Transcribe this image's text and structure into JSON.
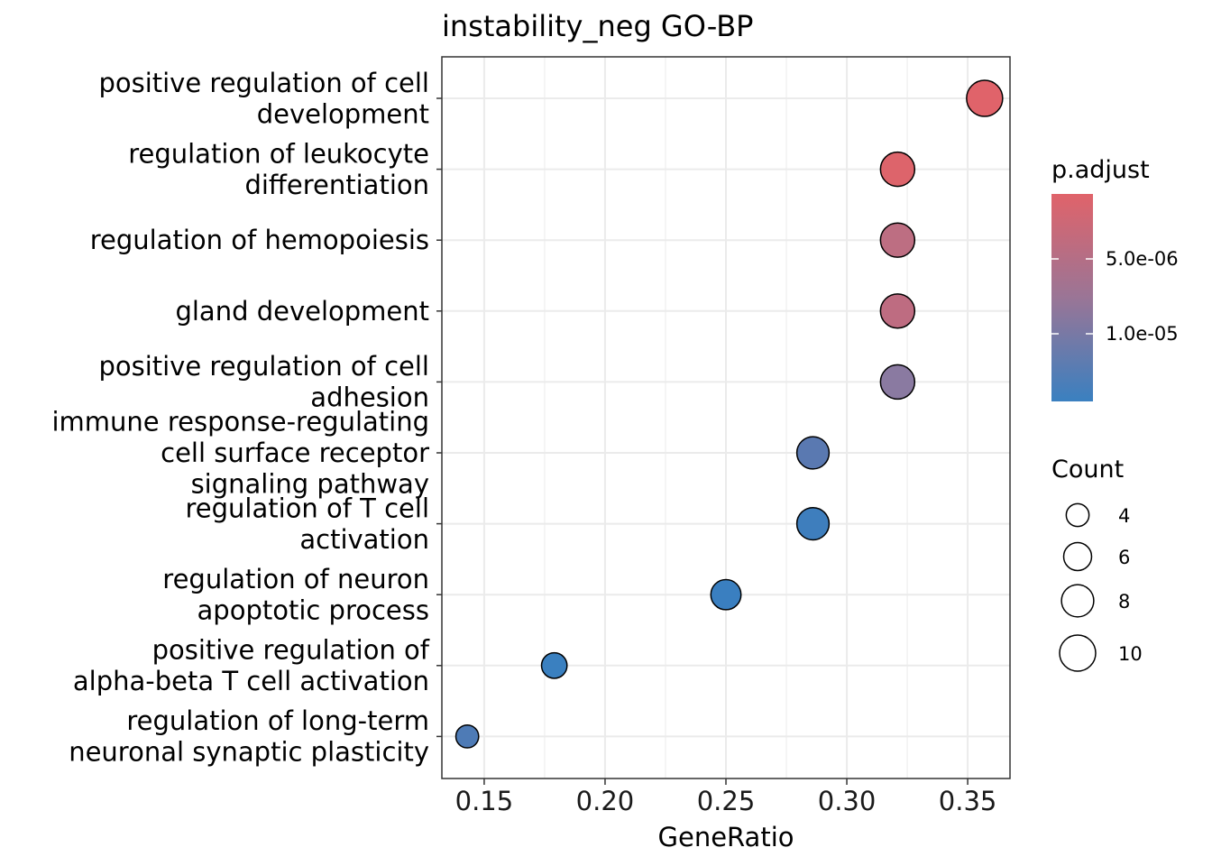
{
  "chart_data": {
    "type": "scatter",
    "title": "instability_neg GO-BP",
    "xlabel": "GeneRatio",
    "ylabel": "",
    "xlim": [
      0.1325,
      0.3675
    ],
    "xticks": [
      "0.15",
      "0.20",
      "0.25",
      "0.30",
      "0.35"
    ],
    "xtick_values": [
      0.15,
      0.2,
      0.25,
      0.3,
      0.35
    ],
    "grid": true,
    "legend_position": "right",
    "points": [
      {
        "label": [
          "positive regulation of cell",
          "development"
        ],
        "x": 0.357,
        "count": 10,
        "p_adjust": 1.2e-06,
        "color": "#E0636A"
      },
      {
        "label": [
          "regulation of leukocyte",
          "differentiation"
        ],
        "x": 0.321,
        "count": 9,
        "p_adjust": 1.5e-06,
        "color": "#DD646B"
      },
      {
        "label": [
          "regulation of hemopoiesis"
        ],
        "x": 0.321,
        "count": 9,
        "p_adjust": 5.5e-06,
        "color": "#BD6E82"
      },
      {
        "label": [
          "gland development"
        ],
        "x": 0.321,
        "count": 9,
        "p_adjust": 5.6e-06,
        "color": "#BE6C81"
      },
      {
        "label": [
          "positive regulation of cell",
          "adhesion"
        ],
        "x": 0.321,
        "count": 9,
        "p_adjust": 1.07e-05,
        "color": "#8A7AA1"
      },
      {
        "label": [
          "immune response-regulating",
          "cell surface receptor",
          "signaling pathway"
        ],
        "x": 0.286,
        "count": 8,
        "p_adjust": 1.33e-05,
        "color": "#5A79B1"
      },
      {
        "label": [
          "regulation of T cell",
          "activation"
        ],
        "x": 0.286,
        "count": 8,
        "p_adjust": 1.4e-05,
        "color": "#3E7EBD"
      },
      {
        "label": [
          "regulation of neuron",
          "apoptotic process"
        ],
        "x": 0.25,
        "count": 7,
        "p_adjust": 1.45e-05,
        "color": "#3A7FC0"
      },
      {
        "label": [
          "positive regulation of",
          "alpha-beta T cell activation"
        ],
        "x": 0.179,
        "count": 5,
        "p_adjust": 1.45e-05,
        "color": "#3A80C0"
      },
      {
        "label": [
          "regulation of long-term",
          "neuronal synaptic plasticity"
        ],
        "x": 0.143,
        "count": 4,
        "p_adjust": 1.38e-05,
        "color": "#4E7BB6"
      }
    ],
    "color_legend": {
      "title": "p.adjust",
      "high_color": "#E0636A",
      "mid_color": "#9A7596",
      "low_color": "#3A80C0",
      "labels": [
        "5.0e-06",
        "1.0e-05"
      ]
    },
    "size_legend": {
      "title": "Count",
      "values": [
        4,
        6,
        8,
        10
      ],
      "labels": [
        "4",
        "6",
        "8",
        "10"
      ]
    }
  }
}
